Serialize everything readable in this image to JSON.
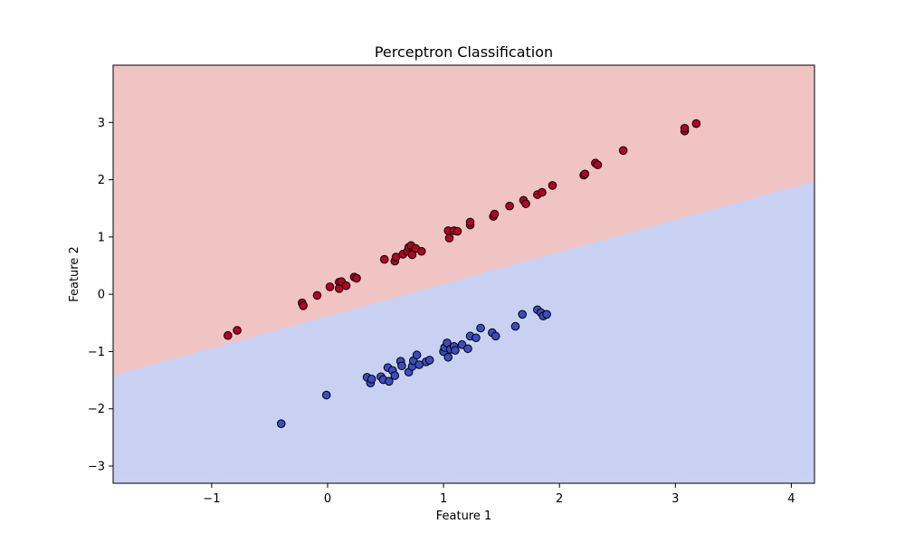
{
  "chart_data": {
    "type": "scatter",
    "title": "Perceptron Classification",
    "xlabel": "Feature 1",
    "ylabel": "Feature 2",
    "xlim": [
      -1.85,
      4.2
    ],
    "ylim": [
      -3.3,
      4.0
    ],
    "xticks": [
      -1,
      0,
      1,
      2,
      3,
      4
    ],
    "yticks": [
      -3,
      -2,
      -1,
      0,
      1,
      2,
      3
    ],
    "grid": false,
    "decision_boundary": {
      "points": [
        [
          -1.85,
          -1.42
        ],
        [
          4.2,
          1.97
        ]
      ],
      "region_above_color": "#f0c4c3",
      "region_below_color": "#c8d1f2"
    },
    "series": [
      {
        "color": "#b40426",
        "edgecolor": "#000000",
        "x": [
          -0.86,
          -0.78,
          -0.22,
          -0.21,
          -0.09,
          0.02,
          0.1,
          0.1,
          0.12,
          0.16,
          0.23,
          0.25,
          0.49,
          0.58,
          0.59,
          0.65,
          0.69,
          0.7,
          0.72,
          0.73,
          0.76,
          0.81,
          1.04,
          1.05,
          1.09,
          1.12,
          1.23,
          1.23,
          1.43,
          1.44,
          1.57,
          1.69,
          1.71,
          1.81,
          1.85,
          1.94,
          2.21,
          2.22,
          2.31,
          2.33,
          2.55,
          3.08,
          3.08,
          3.18
        ],
        "y": [
          -0.72,
          -0.63,
          -0.15,
          -0.2,
          -0.02,
          0.13,
          0.21,
          0.1,
          0.22,
          0.15,
          0.3,
          0.28,
          0.61,
          0.58,
          0.65,
          0.7,
          0.75,
          0.82,
          0.85,
          0.69,
          0.8,
          0.75,
          1.11,
          0.98,
          1.11,
          1.1,
          1.21,
          1.26,
          1.36,
          1.4,
          1.54,
          1.64,
          1.58,
          1.74,
          1.78,
          1.9,
          2.08,
          2.1,
          2.29,
          2.26,
          2.51,
          2.85,
          2.9,
          2.98
        ]
      },
      {
        "color": "#3b4cc0",
        "edgecolor": "#000000",
        "x": [
          -0.4,
          -0.01,
          0.34,
          0.37,
          0.38,
          0.46,
          0.48,
          0.52,
          0.53,
          0.56,
          0.58,
          0.63,
          0.64,
          0.7,
          0.73,
          0.74,
          0.77,
          0.79,
          0.85,
          0.88,
          1.0,
          1.01,
          1.03,
          1.04,
          1.06,
          1.09,
          1.1,
          1.16,
          1.21,
          1.23,
          1.28,
          1.32,
          1.42,
          1.45,
          1.62,
          1.68,
          1.81,
          1.84,
          1.86,
          1.89
        ],
        "y": [
          -2.26,
          -1.76,
          -1.45,
          -1.55,
          -1.48,
          -1.44,
          -1.49,
          -1.28,
          -1.52,
          -1.33,
          -1.42,
          -1.17,
          -1.25,
          -1.36,
          -1.26,
          -1.16,
          -1.06,
          -1.23,
          -1.18,
          -1.15,
          -1.0,
          -0.93,
          -0.85,
          -1.1,
          -0.96,
          -0.91,
          -0.98,
          -0.88,
          -0.95,
          -0.73,
          -0.76,
          -0.59,
          -0.67,
          -0.73,
          -0.56,
          -0.35,
          -0.27,
          -0.32,
          -0.38,
          -0.35
        ]
      }
    ]
  }
}
